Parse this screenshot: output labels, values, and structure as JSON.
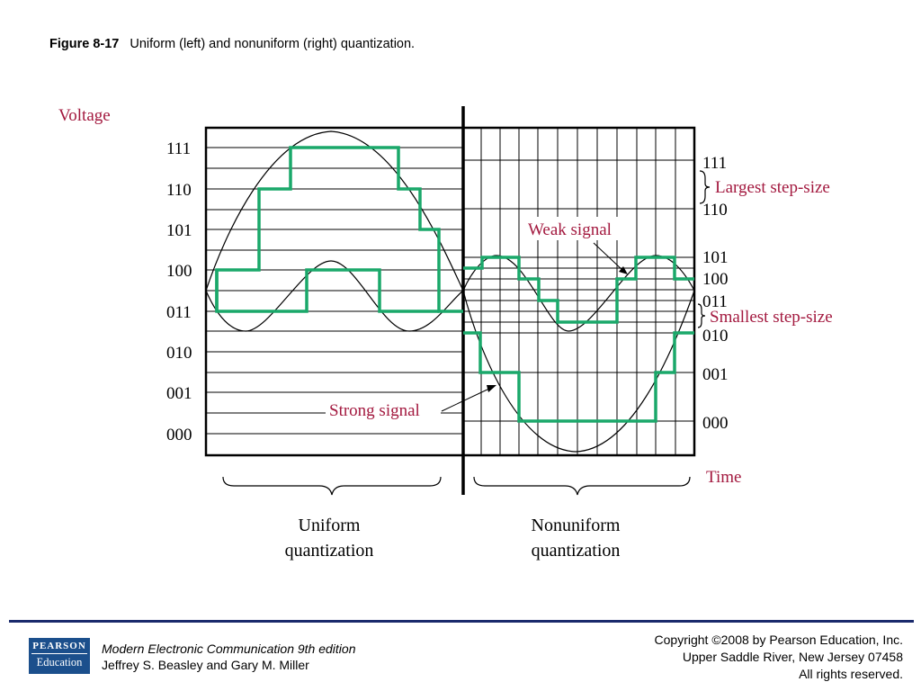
{
  "figure": {
    "number": "Figure 8-17",
    "caption": "Uniform (left) and nonuniform (right) quantization."
  },
  "diagram": {
    "axis_label_voltage": "Voltage",
    "axis_label_time": "Time",
    "uniform_codes": [
      "111",
      "110",
      "101",
      "100",
      "011",
      "010",
      "001",
      "000"
    ],
    "nonuniform_codes": [
      "111",
      "110",
      "101",
      "100",
      "011",
      "010",
      "001",
      "000"
    ],
    "annotations": {
      "largest_step": "Largest step-size",
      "smallest_step": "Smallest step-size",
      "weak_signal": "Weak signal",
      "strong_signal": "Strong signal"
    },
    "section_labels": {
      "uniform_line1": "Uniform",
      "uniform_line2": "quantization",
      "nonuniform_line1": "Nonuniform",
      "nonuniform_line2": "quantization"
    },
    "colors": {
      "quantized": "#1aa86a",
      "label": "#a3193f",
      "grid": "#000000",
      "footer_rule": "#1a2a6c",
      "logo": "#1b4f8c"
    }
  },
  "footer": {
    "logo_top": "PEARSON",
    "logo_bottom": "Education",
    "book_title": "Modern Electronic Communication 9th edition",
    "authors": "Jeffrey S. Beasley and Gary M. Miller",
    "copyright_line1": "Copyright ©2008 by Pearson Education, Inc.",
    "copyright_line2": "Upper Saddle River, New Jersey 07458",
    "copyright_line3": "All rights reserved."
  }
}
